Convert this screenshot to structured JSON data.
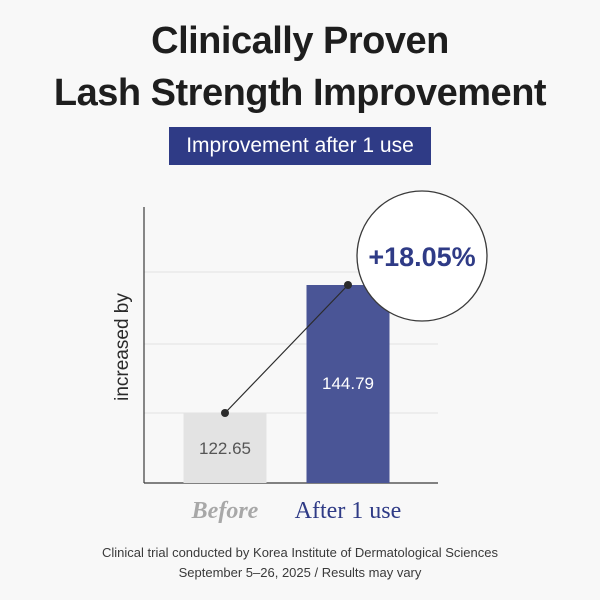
{
  "header": {
    "title_line1": "Clinically Proven",
    "title_line2": "Lash Strength Improvement",
    "badge": "Improvement after 1 use"
  },
  "chart_data": {
    "type": "bar",
    "categories": [
      "Before",
      "After 1 use"
    ],
    "values": [
      122.65,
      144.79
    ],
    "value_labels": [
      "122.65",
      "144.79"
    ],
    "ylabel": "increased by",
    "callout": "+18.05%",
    "colors": [
      "#e3e3e3",
      "#4a5596"
    ],
    "accent": "#2f3b86",
    "category_colors": [
      "#a8a8a8",
      "#2f3b86"
    ]
  },
  "footer": {
    "line1": "Clinical trial conducted by Korea Institute of Dermatological Sciences",
    "line2": "September 5–26, 2025 / Results may vary"
  }
}
